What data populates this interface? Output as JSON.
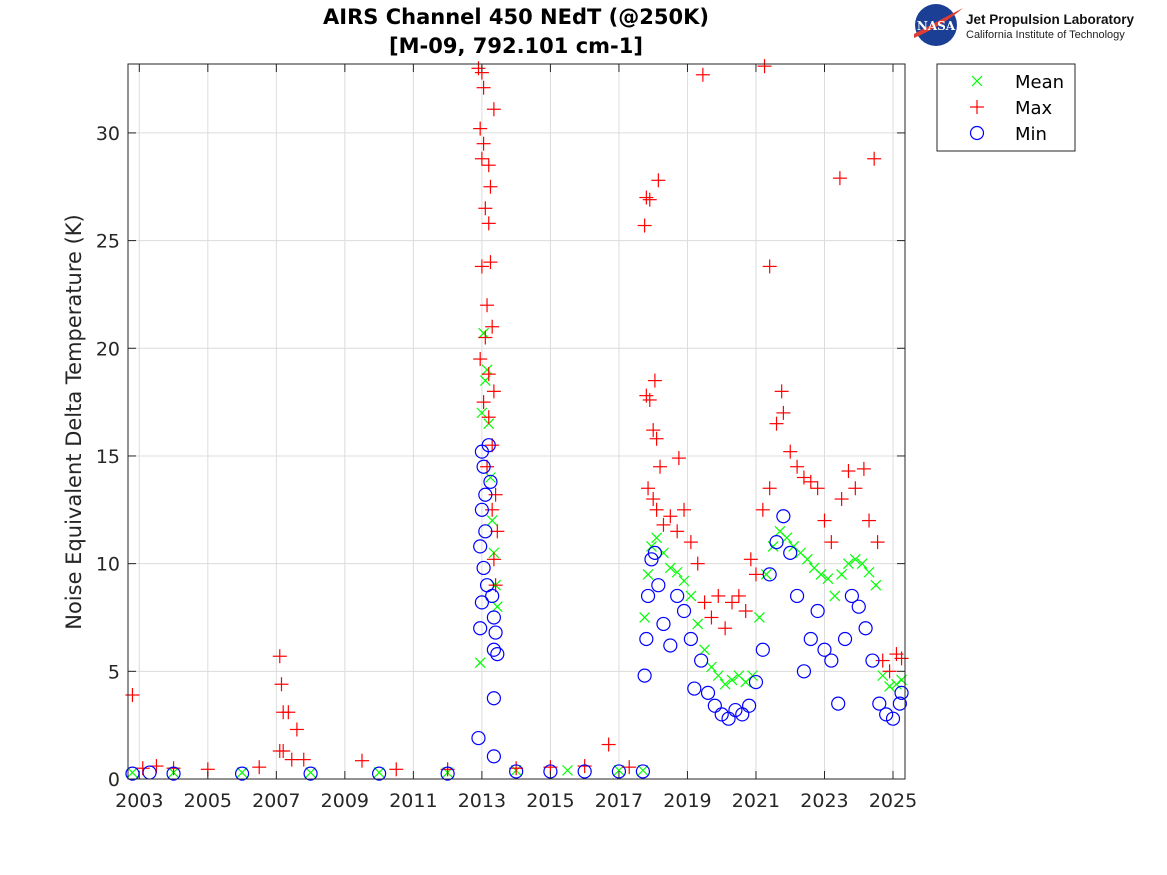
{
  "logo": {
    "badge_text": "NASA",
    "org_name": "Jet Propulsion Laboratory",
    "org_sub": "California Institute of Technology"
  },
  "colors": {
    "mean": "#00ff00",
    "max": "#ff0000",
    "min": "#0000ff",
    "grid": "#dcdcdc",
    "axis": "#262626",
    "nasa_blue": "#1b3f94",
    "nasa_red": "#e03c31"
  },
  "chart_data": {
    "type": "scatter",
    "title": [
      "AIRS Channel 450 NEdT (@250K)",
      "[M-09, 792.101 cm-1]"
    ],
    "xlabel": "",
    "ylabel": "Noise Equivalent Delta Temperature (K)",
    "xlim": [
      2002.67,
      2025.35
    ],
    "ylim": [
      0,
      33.2
    ],
    "xticks": [
      2003,
      2005,
      2007,
      2009,
      2011,
      2013,
      2015,
      2017,
      2019,
      2021,
      2023,
      2025
    ],
    "xtick_labels": [
      "2003",
      "2005",
      "2007",
      "2009",
      "2011",
      "2013",
      "2015",
      "2017",
      "2019",
      "2021",
      "2023",
      "2025"
    ],
    "yticks": [
      0,
      5,
      10,
      15,
      20,
      25,
      30
    ],
    "ytick_labels": [
      "0",
      "5",
      "10",
      "15",
      "20",
      "25",
      "30"
    ],
    "grid": true,
    "legend": {
      "placement": "outside-top-right",
      "entries": [
        "Mean",
        "Max",
        "Min"
      ]
    },
    "series": [
      {
        "name": "Mean",
        "marker": "x",
        "color": "#00ff00",
        "points": [
          [
            2002.8,
            0.3
          ],
          [
            2004.0,
            0.3
          ],
          [
            2006.0,
            0.3
          ],
          [
            2008.0,
            0.3
          ],
          [
            2010.0,
            0.3
          ],
          [
            2012.0,
            0.3
          ],
          [
            2012.95,
            5.4
          ],
          [
            2013.0,
            17.0
          ],
          [
            2013.05,
            20.7
          ],
          [
            2013.1,
            18.5
          ],
          [
            2013.15,
            19.0
          ],
          [
            2013.2,
            16.5
          ],
          [
            2013.25,
            14.0
          ],
          [
            2013.3,
            12.0
          ],
          [
            2013.35,
            10.5
          ],
          [
            2013.4,
            9.0
          ],
          [
            2013.45,
            8.0
          ],
          [
            2014.0,
            0.4
          ],
          [
            2015.5,
            0.4
          ],
          [
            2017.0,
            0.4
          ],
          [
            2017.7,
            0.4
          ],
          [
            2017.75,
            7.5
          ],
          [
            2017.85,
            9.5
          ],
          [
            2017.95,
            10.8
          ],
          [
            2018.1,
            11.2
          ],
          [
            2018.3,
            10.5
          ],
          [
            2018.5,
            9.8
          ],
          [
            2018.7,
            9.6
          ],
          [
            2018.9,
            9.2
          ],
          [
            2019.1,
            8.5
          ],
          [
            2019.3,
            7.2
          ],
          [
            2019.5,
            6.0
          ],
          [
            2019.7,
            5.2
          ],
          [
            2019.9,
            4.8
          ],
          [
            2020.1,
            4.4
          ],
          [
            2020.3,
            4.6
          ],
          [
            2020.5,
            4.8
          ],
          [
            2020.7,
            4.5
          ],
          [
            2020.9,
            4.8
          ],
          [
            2021.1,
            7.5
          ],
          [
            2021.3,
            9.5
          ],
          [
            2021.5,
            10.8
          ],
          [
            2021.7,
            11.5
          ],
          [
            2021.9,
            11.2
          ],
          [
            2022.1,
            10.8
          ],
          [
            2022.3,
            10.5
          ],
          [
            2022.5,
            10.2
          ],
          [
            2022.7,
            9.8
          ],
          [
            2022.9,
            9.5
          ],
          [
            2023.1,
            9.3
          ],
          [
            2023.3,
            8.5
          ],
          [
            2023.5,
            9.5
          ],
          [
            2023.7,
            10.0
          ],
          [
            2023.9,
            10.2
          ],
          [
            2024.1,
            10.0
          ],
          [
            2024.3,
            9.6
          ],
          [
            2024.5,
            9.0
          ],
          [
            2024.7,
            4.8
          ],
          [
            2024.9,
            4.3
          ],
          [
            2025.1,
            4.4
          ],
          [
            2025.25,
            4.6
          ]
        ]
      },
      {
        "name": "Max",
        "marker": "+",
        "color": "#ff0000",
        "points": [
          [
            2002.8,
            3.9
          ],
          [
            2003.1,
            0.5
          ],
          [
            2003.5,
            0.6
          ],
          [
            2004.0,
            0.5
          ],
          [
            2005.0,
            0.45
          ],
          [
            2006.5,
            0.55
          ],
          [
            2007.1,
            5.7
          ],
          [
            2007.15,
            4.4
          ],
          [
            2007.2,
            3.1
          ],
          [
            2007.35,
            3.1
          ],
          [
            2007.1,
            1.3
          ],
          [
            2007.2,
            1.3
          ],
          [
            2007.6,
            2.3
          ],
          [
            2007.45,
            0.9
          ],
          [
            2007.8,
            0.9
          ],
          [
            2009.5,
            0.85
          ],
          [
            2010.5,
            0.45
          ],
          [
            2012.0,
            0.45
          ],
          [
            2012.9,
            33.0
          ],
          [
            2013.0,
            32.8
          ],
          [
            2013.05,
            32.1
          ],
          [
            2013.35,
            31.1
          ],
          [
            2012.95,
            30.2
          ],
          [
            2013.05,
            29.5
          ],
          [
            2013.2,
            28.5
          ],
          [
            2013.0,
            28.8
          ],
          [
            2013.25,
            27.5
          ],
          [
            2013.1,
            26.5
          ],
          [
            2013.2,
            25.8
          ],
          [
            2013.25,
            24.0
          ],
          [
            2013.0,
            23.8
          ],
          [
            2013.15,
            22.0
          ],
          [
            2013.3,
            21.0
          ],
          [
            2013.1,
            20.5
          ],
          [
            2012.95,
            19.5
          ],
          [
            2013.2,
            18.8
          ],
          [
            2013.35,
            18.0
          ],
          [
            2013.05,
            17.5
          ],
          [
            2013.2,
            16.8
          ],
          [
            2013.3,
            15.5
          ],
          [
            2013.15,
            14.5
          ],
          [
            2013.4,
            13.2
          ],
          [
            2013.3,
            12.5
          ],
          [
            2013.45,
            11.5
          ],
          [
            2013.35,
            10.2
          ],
          [
            2013.4,
            9.0
          ],
          [
            2014.0,
            0.5
          ],
          [
            2015.0,
            0.55
          ],
          [
            2016.0,
            0.6
          ],
          [
            2016.7,
            1.6
          ],
          [
            2017.3,
            0.55
          ],
          [
            2017.75,
            25.7
          ],
          [
            2017.8,
            27.0
          ],
          [
            2017.9,
            26.9
          ],
          [
            2018.15,
            27.8
          ],
          [
            2017.8,
            17.8
          ],
          [
            2017.9,
            17.6
          ],
          [
            2018.05,
            18.5
          ],
          [
            2018.0,
            16.2
          ],
          [
            2018.1,
            15.8
          ],
          [
            2018.2,
            14.5
          ],
          [
            2017.85,
            13.5
          ],
          [
            2018.0,
            13.0
          ],
          [
            2018.1,
            12.5
          ],
          [
            2018.3,
            11.8
          ],
          [
            2018.5,
            12.2
          ],
          [
            2018.75,
            14.9
          ],
          [
            2018.7,
            11.5
          ],
          [
            2018.9,
            12.5
          ],
          [
            2019.1,
            11.0
          ],
          [
            2019.3,
            10.0
          ],
          [
            2019.45,
            32.7
          ],
          [
            2019.5,
            8.2
          ],
          [
            2019.7,
            7.5
          ],
          [
            2019.9,
            8.5
          ],
          [
            2020.1,
            7.0
          ],
          [
            2020.3,
            8.2
          ],
          [
            2020.5,
            8.5
          ],
          [
            2020.7,
            7.8
          ],
          [
            2020.85,
            10.2
          ],
          [
            2021.0,
            9.5
          ],
          [
            2021.25,
            33.1
          ],
          [
            2021.4,
            23.8
          ],
          [
            2021.2,
            12.5
          ],
          [
            2021.4,
            13.5
          ],
          [
            2021.6,
            16.5
          ],
          [
            2021.75,
            18.0
          ],
          [
            2021.8,
            17.0
          ],
          [
            2022.0,
            15.2
          ],
          [
            2022.2,
            14.5
          ],
          [
            2022.4,
            14.0
          ],
          [
            2022.6,
            13.8
          ],
          [
            2022.8,
            13.5
          ],
          [
            2023.0,
            12.0
          ],
          [
            2023.2,
            11.0
          ],
          [
            2023.45,
            27.9
          ],
          [
            2023.5,
            13.0
          ],
          [
            2023.7,
            14.3
          ],
          [
            2023.9,
            13.5
          ],
          [
            2024.15,
            14.4
          ],
          [
            2024.3,
            12.0
          ],
          [
            2024.45,
            28.8
          ],
          [
            2024.55,
            11.0
          ],
          [
            2024.7,
            5.5
          ],
          [
            2024.9,
            5.0
          ],
          [
            2025.1,
            5.8
          ],
          [
            2025.25,
            5.6
          ]
        ]
      },
      {
        "name": "Min",
        "marker": "o",
        "color": "#0000ff",
        "points": [
          [
            2002.8,
            0.25
          ],
          [
            2003.3,
            0.3
          ],
          [
            2004.0,
            0.25
          ],
          [
            2006.0,
            0.25
          ],
          [
            2008.0,
            0.25
          ],
          [
            2010.0,
            0.25
          ],
          [
            2012.0,
            0.25
          ],
          [
            2012.9,
            1.9
          ],
          [
            2013.35,
            3.75
          ],
          [
            2013.35,
            1.05
          ],
          [
            2012.95,
            7.0
          ],
          [
            2013.0,
            15.2
          ],
          [
            2013.05,
            14.5
          ],
          [
            2013.1,
            13.2
          ],
          [
            2013.0,
            12.5
          ],
          [
            2013.1,
            11.5
          ],
          [
            2012.95,
            10.8
          ],
          [
            2013.05,
            9.8
          ],
          [
            2013.15,
            9.0
          ],
          [
            2013.0,
            8.2
          ],
          [
            2013.2,
            15.5
          ],
          [
            2013.25,
            13.8
          ],
          [
            2013.3,
            8.5
          ],
          [
            2013.35,
            7.5
          ],
          [
            2013.4,
            6.8
          ],
          [
            2013.35,
            6.0
          ],
          [
            2013.45,
            5.8
          ],
          [
            2014.0,
            0.35
          ],
          [
            2015.0,
            0.35
          ],
          [
            2016.0,
            0.35
          ],
          [
            2017.0,
            0.35
          ],
          [
            2017.7,
            0.35
          ],
          [
            2017.75,
            4.8
          ],
          [
            2017.8,
            6.5
          ],
          [
            2017.85,
            8.5
          ],
          [
            2017.95,
            10.2
          ],
          [
            2018.05,
            10.5
          ],
          [
            2018.15,
            9.0
          ],
          [
            2018.3,
            7.2
          ],
          [
            2018.5,
            6.2
          ],
          [
            2018.7,
            8.5
          ],
          [
            2018.9,
            7.8
          ],
          [
            2019.1,
            6.5
          ],
          [
            2019.2,
            4.2
          ],
          [
            2019.4,
            5.5
          ],
          [
            2019.6,
            4.0
          ],
          [
            2019.8,
            3.4
          ],
          [
            2020.0,
            3.0
          ],
          [
            2020.2,
            2.8
          ],
          [
            2020.4,
            3.2
          ],
          [
            2020.6,
            3.0
          ],
          [
            2020.8,
            3.4
          ],
          [
            2021.0,
            4.5
          ],
          [
            2021.2,
            6.0
          ],
          [
            2021.4,
            9.5
          ],
          [
            2021.6,
            11.0
          ],
          [
            2021.8,
            12.2
          ],
          [
            2022.0,
            10.5
          ],
          [
            2022.2,
            8.5
          ],
          [
            2022.4,
            5.0
          ],
          [
            2022.6,
            6.5
          ],
          [
            2022.8,
            7.8
          ],
          [
            2023.0,
            6.0
          ],
          [
            2023.2,
            5.5
          ],
          [
            2023.4,
            3.5
          ],
          [
            2023.6,
            6.5
          ],
          [
            2023.8,
            8.5
          ],
          [
            2024.0,
            8.0
          ],
          [
            2024.2,
            7.0
          ],
          [
            2024.4,
            5.5
          ],
          [
            2024.6,
            3.5
          ],
          [
            2024.8,
            3.0
          ],
          [
            2025.0,
            2.8
          ],
          [
            2025.2,
            3.5
          ],
          [
            2025.25,
            4.0
          ]
        ]
      }
    ]
  }
}
